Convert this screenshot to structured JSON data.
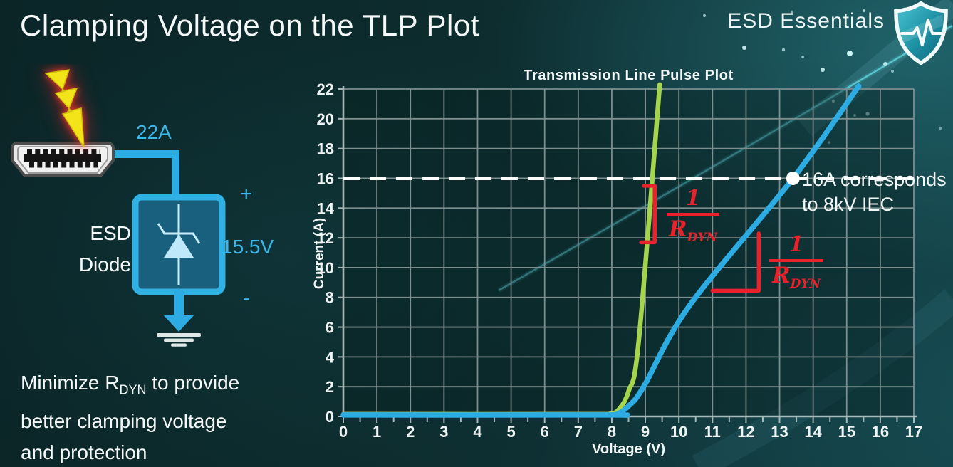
{
  "slide": {
    "title": "Clamping Voltage on the TLP Plot",
    "brand": "ESD Essentials"
  },
  "colors": {
    "accent_cyan": "#3db7e9",
    "curve_green": "#a5d44d",
    "curve_blue": "#2cace3",
    "annotation_red": "#e8212b",
    "reference_white": "#ffffff",
    "grid": "#7d8e8e",
    "axis": "#a7b8b8"
  },
  "diagram": {
    "surge_current_label": "22A",
    "plus_label": "+",
    "clamp_voltage_label": "15.5V",
    "minus_label": "-",
    "component_line1": "ESD",
    "component_line2": "Diode",
    "icons": [
      "lightning-icon",
      "hdmi-connector-icon",
      "zener-diode-icon",
      "ground-icon",
      "shield-logo-icon"
    ]
  },
  "caption": {
    "line1_pre": "Minimize R",
    "line1_sub": "DYN",
    "line1_post": " to provide",
    "line2": "better clamping voltage",
    "line3": "and protection"
  },
  "chart_data": {
    "type": "line",
    "title": "Transmission Line Pulse Plot",
    "xlabel": "Voltage (V)",
    "ylabel": "Current (A)",
    "xlim": [
      0,
      17
    ],
    "ylim": [
      0,
      22
    ],
    "x_ticks": [
      0,
      1,
      2,
      3,
      4,
      5,
      6,
      7,
      8,
      9,
      10,
      11,
      12,
      13,
      14,
      15,
      16,
      17
    ],
    "y_ticks": [
      0,
      2,
      4,
      6,
      8,
      10,
      12,
      14,
      16,
      18,
      20,
      22
    ],
    "grid": true,
    "legend": "none",
    "series": [
      {
        "name": "low-rdyn-esd-diode",
        "color": "#a5d44d",
        "width": 6.5,
        "points": [
          [
            0,
            0.15
          ],
          [
            7.6,
            0.15
          ],
          [
            7.95,
            0.18
          ],
          [
            8.2,
            0.45
          ],
          [
            8.5,
            1.7
          ],
          [
            8.8,
            5.0
          ],
          [
            9.43,
            22.3
          ]
        ]
      },
      {
        "name": "high-rdyn-esd-diode",
        "color": "#2cace3",
        "width": 7.5,
        "points": [
          [
            0,
            0.1
          ],
          [
            7.8,
            0.1
          ],
          [
            8.15,
            0.15
          ],
          [
            8.5,
            0.7
          ],
          [
            8.95,
            2.0
          ],
          [
            10.3,
            7.4
          ],
          [
            13.4,
            16
          ],
          [
            15.36,
            22.2
          ]
        ]
      }
    ],
    "reference_line": {
      "axis": "y",
      "value": 16,
      "color": "#ffffff",
      "style": "dashed"
    },
    "marker_point": {
      "x": 13.4,
      "y": 16,
      "color": "#ffffff"
    },
    "callout": {
      "line1": "16A corresponds",
      "line2": "to 8kV IEC"
    },
    "slope_marks": [
      {
        "type": "bracket",
        "color": "#e8212b",
        "x": 9.28,
        "y_top": 15.5,
        "y_bottom": 11.7,
        "tick_v": 0.32
      },
      {
        "type": "right-angle",
        "color": "#e8212b",
        "x_corner": 12.38,
        "y_top": 12.3,
        "y_bottom": 8.45,
        "x_left": 11.0
      }
    ],
    "rdyn_label": {
      "numerator": "1",
      "denominator_base": "R",
      "denominator_sub": "DYN"
    }
  }
}
